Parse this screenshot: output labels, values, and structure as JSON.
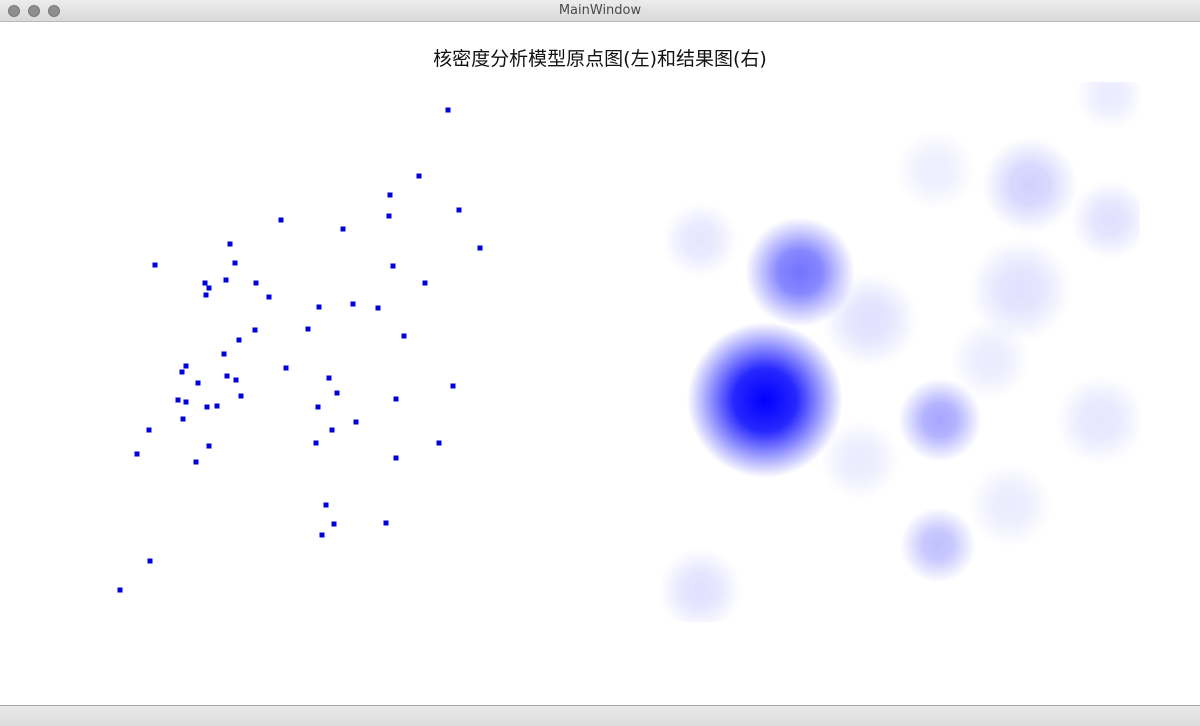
{
  "window": {
    "title": "MainWindow"
  },
  "main": {
    "title": "核密度分析模型原点图(左)和结果图(右)"
  },
  "colors": {
    "point": "#0000dd",
    "density": "#0000ff"
  },
  "chart_data": [
    {
      "type": "scatter",
      "title": "",
      "xlabel": "",
      "ylabel": "",
      "xlim": [
        0,
        600
      ],
      "ylim": [
        0,
        600
      ],
      "points": [
        [
          448,
          110
        ],
        [
          419,
          176
        ],
        [
          390,
          195
        ],
        [
          459,
          210
        ],
        [
          389,
          216
        ],
        [
          281,
          220
        ],
        [
          343,
          229
        ],
        [
          480,
          248
        ],
        [
          230,
          244
        ],
        [
          235,
          263
        ],
        [
          155,
          265
        ],
        [
          393,
          266
        ],
        [
          226,
          280
        ],
        [
          205,
          283
        ],
        [
          256,
          283
        ],
        [
          425,
          283
        ],
        [
          209,
          288
        ],
        [
          206,
          295
        ],
        [
          269,
          297
        ],
        [
          353,
          304
        ],
        [
          319,
          307
        ],
        [
          378,
          308
        ],
        [
          255,
          330
        ],
        [
          308,
          329
        ],
        [
          404,
          336
        ],
        [
          239,
          340
        ],
        [
          224,
          354
        ],
        [
          186,
          366
        ],
        [
          286,
          368
        ],
        [
          182,
          372
        ],
        [
          227,
          376
        ],
        [
          236,
          380
        ],
        [
          329,
          378
        ],
        [
          198,
          383
        ],
        [
          453,
          386
        ],
        [
          337,
          393
        ],
        [
          241,
          396
        ],
        [
          396,
          399
        ],
        [
          178,
          400
        ],
        [
          186,
          402
        ],
        [
          207,
          407
        ],
        [
          217,
          406
        ],
        [
          318,
          407
        ],
        [
          183,
          419
        ],
        [
          356,
          422
        ],
        [
          332,
          430
        ],
        [
          149,
          430
        ],
        [
          316,
          443
        ],
        [
          209,
          446
        ],
        [
          439,
          443
        ],
        [
          137,
          454
        ],
        [
          396,
          458
        ],
        [
          196,
          462
        ],
        [
          326,
          505
        ],
        [
          334,
          524
        ],
        [
          386,
          523
        ],
        [
          322,
          535
        ],
        [
          150,
          561
        ],
        [
          120,
          590
        ]
      ]
    },
    {
      "type": "heatmap",
      "title": "",
      "xlim": [
        660,
        1140
      ],
      "ylim": [
        82,
        622
      ],
      "blobs": [
        [
          765,
          400,
          78,
          1.0
        ],
        [
          800,
          272,
          55,
          0.55
        ],
        [
          940,
          420,
          42,
          0.35
        ],
        [
          938,
          545,
          38,
          0.25
        ],
        [
          1030,
          185,
          48,
          0.18
        ],
        [
          1110,
          220,
          40,
          0.12
        ],
        [
          1020,
          290,
          52,
          0.12
        ],
        [
          700,
          240,
          38,
          0.1
        ],
        [
          700,
          590,
          42,
          0.12
        ],
        [
          1100,
          420,
          45,
          0.1
        ],
        [
          1010,
          505,
          42,
          0.08
        ],
        [
          935,
          170,
          40,
          0.07
        ],
        [
          1110,
          95,
          35,
          0.08
        ],
        [
          870,
          320,
          48,
          0.12
        ],
        [
          990,
          360,
          40,
          0.08
        ],
        [
          860,
          460,
          40,
          0.08
        ]
      ]
    }
  ]
}
